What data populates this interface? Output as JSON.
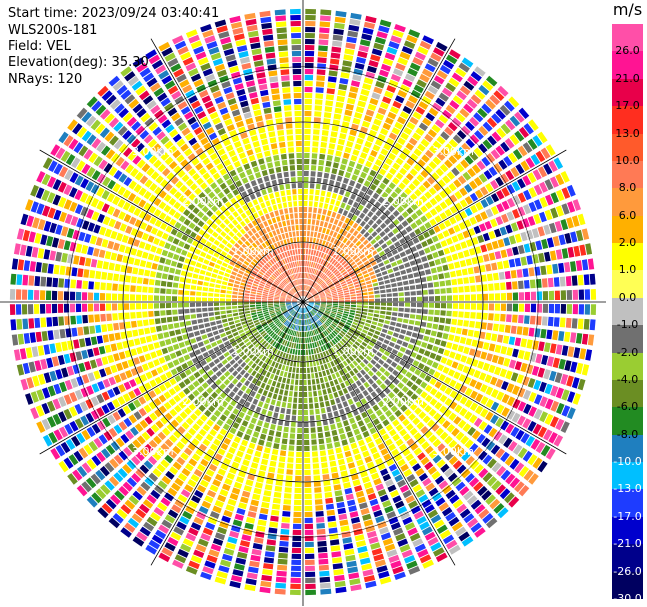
{
  "header": {
    "start_time": "Start time: 2023/09/24 03:40:41",
    "instrument": "WLS200s-181",
    "field": "Field: VEL",
    "elevation": "Elevation(deg): 35.30",
    "nrays": "NRays: 120"
  },
  "colorbar": {
    "unit": "m/s",
    "segments": [
      {
        "label": "26.0",
        "color": "#ff4fa8"
      },
      {
        "label": "21.0",
        "color": "#ff1493"
      },
      {
        "label": "17.0",
        "color": "#e8004a"
      },
      {
        "label": "13.0",
        "color": "#ff2e1f"
      },
      {
        "label": "10.0",
        "color": "#ff5a2b"
      },
      {
        "label": "8.0",
        "color": "#ff7a55"
      },
      {
        "label": "6.0",
        "color": "#ff9a3c"
      },
      {
        "label": "2.0",
        "color": "#ffb000"
      },
      {
        "label": "1.0",
        "color": "#ffff00"
      },
      {
        "label": "0.0",
        "color": "#ffff55"
      },
      {
        "label": "-1.0",
        "color": "#c0c0c0"
      },
      {
        "label": "-2.0",
        "color": "#707070"
      },
      {
        "label": "-4.0",
        "color": "#9acd32"
      },
      {
        "label": "-6.0",
        "color": "#6b8e23"
      },
      {
        "label": "-8.0",
        "color": "#228b22"
      },
      {
        "label": "-10.0",
        "color": "#1f7fbf"
      },
      {
        "label": "-13.0",
        "color": "#00bfff"
      },
      {
        "label": "-17.0",
        "color": "#1e3cff"
      },
      {
        "label": "-21.0",
        "color": "#0000cd"
      },
      {
        "label": "-26.0",
        "color": "#00008b"
      },
      {
        "label": "-30.0",
        "color": "#000060"
      }
    ]
  },
  "chart_data": {
    "type": "heatmap",
    "projection": "polar-ppi",
    "field": "VEL",
    "units": "m/s",
    "elevation_deg": 35.3,
    "n_rays": 120,
    "range_rings_km": [
      1.0,
      2.0,
      3.0
    ],
    "ring_labels": [
      "1.00km",
      "2.00km",
      "3.00km"
    ],
    "max_range_km": 4.9,
    "pattern": {
      "near_center_north": 8.0,
      "north_ring_mid": 2.0,
      "south_lobe": -6.0,
      "background_gray": -2.0,
      "outer_noise_start_km": 3.4
    }
  }
}
